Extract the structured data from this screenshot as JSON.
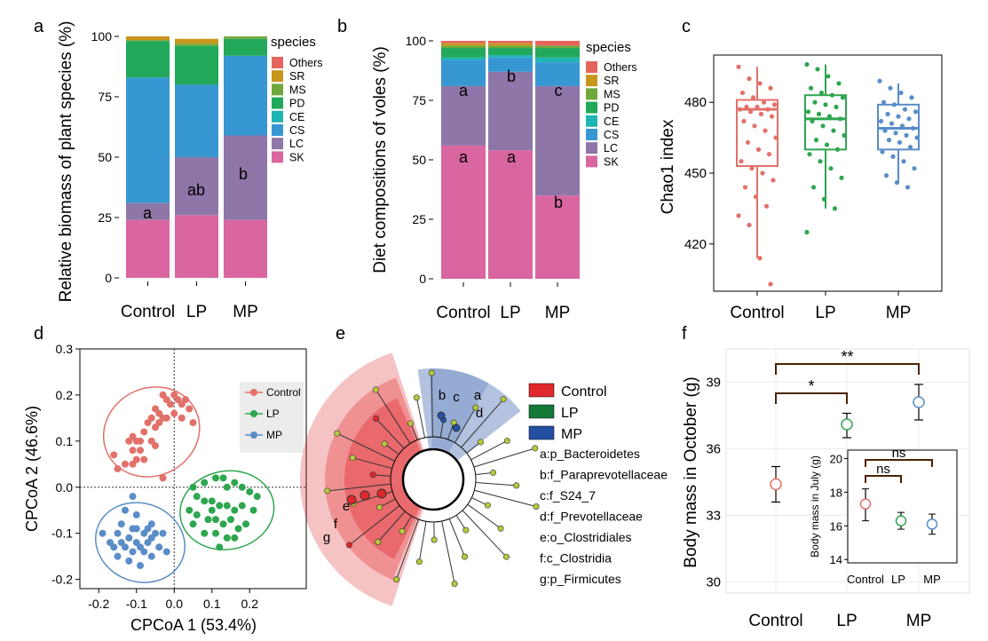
{
  "colors": {
    "SK": "#d966a0",
    "LC": "#8e76a8",
    "CS": "#3797d2",
    "CE": "#1fb5b5",
    "PD": "#21a85b",
    "MS": "#6fa83a",
    "SR": "#c9961c",
    "Others": "#e5645c",
    "control": "#e2716a",
    "lp": "#2ea64f",
    "mp": "#5a8dc8",
    "clado_red": "#e0282c",
    "clado_green": "#137a3a",
    "clado_blue": "#2450a4"
  },
  "chart_data": [
    {
      "panel": "a",
      "type": "bar",
      "stacked": true,
      "ylabel": "Relative biomass of plant species (%)",
      "xlabel": "",
      "categories": [
        "Control",
        "LP",
        "MP"
      ],
      "ylim": [
        0,
        100
      ],
      "yticks": [
        0,
        25,
        50,
        75,
        100
      ],
      "legend_title": "species",
      "legend": [
        "Others",
        "SR",
        "MS",
        "PD",
        "CE",
        "CS",
        "LC",
        "SK"
      ],
      "series": [
        {
          "name": "SK",
          "values": [
            24,
            26,
            24
          ]
        },
        {
          "name": "LC",
          "values": [
            7,
            24,
            35
          ]
        },
        {
          "name": "CS",
          "values": [
            52,
            30,
            33
          ]
        },
        {
          "name": "CE",
          "values": [
            0,
            0,
            0
          ]
        },
        {
          "name": "PD",
          "values": [
            15,
            16,
            7
          ]
        },
        {
          "name": "MS",
          "values": [
            0.5,
            1,
            1
          ]
        },
        {
          "name": "SR",
          "values": [
            1.5,
            2,
            0
          ]
        },
        {
          "name": "Others",
          "values": [
            0,
            0,
            0
          ]
        }
      ],
      "annotations": [
        "a",
        "ab",
        "b"
      ]
    },
    {
      "panel": "b",
      "type": "bar",
      "stacked": true,
      "ylabel": "Diet compositions of voles (%)",
      "xlabel": "",
      "categories": [
        "Control",
        "LP",
        "MP"
      ],
      "ylim": [
        0,
        100
      ],
      "yticks": [
        0,
        25,
        50,
        75,
        100
      ],
      "legend_title": "species",
      "legend": [
        "Others",
        "SR",
        "MS",
        "PD",
        "CE",
        "CS",
        "LC",
        "SK"
      ],
      "series": [
        {
          "name": "SK",
          "values": [
            56,
            54,
            35
          ]
        },
        {
          "name": "LC",
          "values": [
            25,
            33,
            46
          ]
        },
        {
          "name": "CS",
          "values": [
            11,
            6,
            10
          ]
        },
        {
          "name": "CE",
          "values": [
            1,
            1,
            2
          ]
        },
        {
          "name": "PD",
          "values": [
            4,
            3,
            4
          ]
        },
        {
          "name": "MS",
          "values": [
            1,
            1,
            1
          ]
        },
        {
          "name": "SR",
          "values": [
            1,
            1,
            0
          ]
        },
        {
          "name": "Others",
          "values": [
            1,
            1,
            2
          ]
        }
      ],
      "annotations_top": [
        "a",
        "b",
        "c"
      ],
      "annotations_bottom": [
        "a",
        "a",
        "b"
      ]
    },
    {
      "panel": "c",
      "type": "box",
      "ylabel": "Chao1 index",
      "categories": [
        "Control",
        "LP",
        "MP"
      ],
      "ylim": [
        400,
        500
      ],
      "yticks": [
        420,
        450,
        480
      ],
      "boxes": [
        {
          "name": "Control",
          "whisker_low": 414,
          "q1": 453,
          "median": 477,
          "q3": 481,
          "whisker_high": 495
        },
        {
          "name": "LP",
          "whisker_low": 435,
          "q1": 460,
          "median": 473,
          "q3": 483,
          "whisker_high": 496
        },
        {
          "name": "MP",
          "whisker_low": 446,
          "q1": 460,
          "median": 469,
          "q3": 479,
          "whisker_high": 488
        }
      ],
      "points": {
        "Control": [
          495,
          490,
          488,
          486,
          484,
          482,
          480,
          479,
          478,
          478,
          477,
          477,
          476,
          475,
          474,
          472,
          470,
          468,
          465,
          463,
          460,
          458,
          455,
          452,
          450,
          447,
          444,
          440,
          436,
          432,
          428,
          414,
          403
        ],
        "LP": [
          496,
          494,
          491,
          488,
          486,
          484,
          483,
          482,
          480,
          479,
          478,
          476,
          475,
          474,
          473,
          472,
          470,
          468,
          466,
          464,
          462,
          460,
          458,
          455,
          452,
          448,
          444,
          439,
          435,
          425
        ],
        "MP": [
          489,
          486,
          484,
          482,
          480,
          479,
          477,
          476,
          475,
          474,
          473,
          472,
          471,
          470,
          469,
          468,
          467,
          466,
          465,
          464,
          463,
          461,
          459,
          457,
          455,
          452,
          449,
          446,
          444
        ]
      }
    },
    {
      "panel": "d",
      "type": "scatter",
      "xlabel": "CPCoA 1 (53.4%)",
      "ylabel": "CPCoA 2 (46.6%)",
      "xlim": [
        -0.25,
        0.35
      ],
      "ylim": [
        -0.22,
        0.3
      ],
      "xticks": [
        -0.2,
        -0.1,
        0.0,
        0.1,
        0.2
      ],
      "yticks": [
        -0.2,
        -0.1,
        0.0,
        0.1,
        0.2,
        0.3
      ],
      "legend": [
        "Control",
        "LP",
        "MP"
      ],
      "series": [
        {
          "name": "Control",
          "ellipse": {
            "cx": -0.06,
            "cy": 0.12,
            "rx": 0.13,
            "ry": 0.095,
            "angle_deg": 27
          },
          "points": [
            [
              -0.03,
              0.2
            ],
            [
              0.0,
              0.2
            ],
            [
              -0.02,
              0.19
            ],
            [
              -0.01,
              0.18
            ],
            [
              0.01,
              0.19
            ],
            [
              0.02,
              0.18
            ],
            [
              0.03,
              0.19
            ],
            [
              0.04,
              0.17
            ],
            [
              -0.05,
              0.17
            ],
            [
              -0.04,
              0.16
            ],
            [
              -0.03,
              0.15
            ],
            [
              -0.02,
              0.15
            ],
            [
              0.0,
              0.16
            ],
            [
              0.02,
              0.15
            ],
            [
              0.05,
              0.14
            ],
            [
              -0.06,
              0.15
            ],
            [
              -0.07,
              0.14
            ],
            [
              -0.05,
              0.13
            ],
            [
              -0.04,
              0.14
            ],
            [
              -0.08,
              0.12
            ],
            [
              -0.09,
              0.1
            ],
            [
              -0.1,
              0.1
            ],
            [
              -0.11,
              0.08
            ],
            [
              -0.12,
              0.1
            ],
            [
              -0.1,
              0.06
            ],
            [
              -0.11,
              0.05
            ],
            [
              -0.08,
              0.06
            ],
            [
              -0.16,
              0.07
            ],
            [
              -0.15,
              0.04
            ],
            [
              -0.13,
              0.05
            ],
            [
              -0.03,
              0.02
            ],
            [
              -0.05,
              0.09
            ],
            [
              -0.06,
              0.1
            ],
            [
              -0.11,
              0.11
            ],
            [
              -0.09,
              0.08
            ]
          ]
        },
        {
          "name": "LP",
          "ellipse": {
            "cx": 0.14,
            "cy": -0.05,
            "rx": 0.125,
            "ry": 0.085,
            "angle_deg": 10
          },
          "points": [
            [
              0.05,
              0.0
            ],
            [
              0.08,
              0.01
            ],
            [
              0.11,
              0.02
            ],
            [
              0.13,
              0.02
            ],
            [
              0.14,
              0.0
            ],
            [
              0.16,
              0.01
            ],
            [
              0.18,
              0.0
            ],
            [
              0.2,
              -0.01
            ],
            [
              0.06,
              -0.02
            ],
            [
              0.08,
              -0.03
            ],
            [
              0.1,
              -0.03
            ],
            [
              0.12,
              -0.04
            ],
            [
              0.14,
              -0.04
            ],
            [
              0.16,
              -0.05
            ],
            [
              0.18,
              -0.04
            ],
            [
              0.21,
              -0.05
            ],
            [
              0.04,
              -0.05
            ],
            [
              0.06,
              -0.06
            ],
            [
              0.09,
              -0.07
            ],
            [
              0.11,
              -0.07
            ],
            [
              0.13,
              -0.08
            ],
            [
              0.15,
              -0.07
            ],
            [
              0.17,
              -0.09
            ],
            [
              0.19,
              -0.08
            ],
            [
              0.08,
              -0.1
            ],
            [
              0.11,
              -0.1
            ],
            [
              0.14,
              -0.11
            ],
            [
              0.16,
              -0.11
            ],
            [
              0.12,
              -0.13
            ],
            [
              0.05,
              -0.08
            ],
            [
              0.22,
              -0.02
            ],
            [
              0.1,
              -0.05
            ]
          ]
        },
        {
          "name": "MP",
          "ellipse": {
            "cx": -0.09,
            "cy": -0.12,
            "rx": 0.12,
            "ry": 0.085,
            "angle_deg": -20
          },
          "points": [
            [
              -0.13,
              -0.05
            ],
            [
              -0.1,
              -0.06
            ],
            [
              -0.06,
              -0.08
            ],
            [
              -0.14,
              -0.08
            ],
            [
              -0.11,
              -0.09
            ],
            [
              -0.08,
              -0.1
            ],
            [
              -0.05,
              -0.1
            ],
            [
              -0.15,
              -0.1
            ],
            [
              -0.12,
              -0.11
            ],
            [
              -0.1,
              -0.12
            ],
            [
              -0.07,
              -0.12
            ],
            [
              -0.04,
              -0.13
            ],
            [
              -0.17,
              -0.12
            ],
            [
              -0.13,
              -0.13
            ],
            [
              -0.11,
              -0.14
            ],
            [
              -0.08,
              -0.14
            ],
            [
              -0.06,
              -0.15
            ],
            [
              -0.15,
              -0.15
            ],
            [
              -0.12,
              -0.16
            ],
            [
              -0.09,
              -0.17
            ],
            [
              -0.1,
              -0.09
            ],
            [
              -0.03,
              -0.1
            ],
            [
              -0.19,
              -0.1
            ],
            [
              -0.14,
              -0.12
            ],
            [
              -0.07,
              -0.09
            ],
            [
              -0.06,
              -0.11
            ],
            [
              -0.02,
              -0.14
            ],
            [
              -0.16,
              -0.13
            ],
            [
              -0.09,
              -0.13
            ],
            [
              -0.11,
              -0.02
            ]
          ]
        }
      ]
    },
    {
      "panel": "e",
      "type": "cladogram",
      "legend": [
        "Control",
        "LP",
        "MP"
      ],
      "node_labels": [
        "a",
        "b",
        "c",
        "d",
        "e",
        "f",
        "g"
      ],
      "taxa": [
        "a:p_Bacteroidetes",
        "b:f_Paraprevotellaceae",
        "c:f_S24_7",
        "d:f_Prevotellaceae",
        "e:o_Clostridiales",
        "f:c_Clostridia",
        "g:p_Firmicutes"
      ]
    },
    {
      "panel": "f",
      "type": "errorbar",
      "ylabel": "Body mass in October (g)",
      "categories": [
        "Control",
        "LP",
        "MP"
      ],
      "ylim": [
        29.5,
        40.5
      ],
      "yticks": [
        30,
        33,
        36,
        39
      ],
      "series": [
        {
          "name": "Control",
          "mean": 34.4,
          "low": 33.6,
          "high": 35.2
        },
        {
          "name": "LP",
          "mean": 37.1,
          "low": 36.5,
          "high": 37.6
        },
        {
          "name": "MP",
          "mean": 38.1,
          "low": 37.3,
          "high": 38.9
        }
      ],
      "significance": [
        {
          "from": "Control",
          "to": "LP",
          "label": "*"
        },
        {
          "from": "Control",
          "to": "MP",
          "label": "**"
        }
      ],
      "inset": {
        "ylabel": "Body mass in July (g)",
        "categories": [
          "Control",
          "LP",
          "MP"
        ],
        "ylim": [
          13.8,
          20.5
        ],
        "yticks": [
          14,
          16,
          18,
          20
        ],
        "series": [
          {
            "name": "Control",
            "mean": 17.3,
            "low": 16.3,
            "high": 18.2
          },
          {
            "name": "LP",
            "mean": 16.3,
            "low": 15.8,
            "high": 16.8
          },
          {
            "name": "MP",
            "mean": 16.1,
            "low": 15.5,
            "high": 16.7
          }
        ],
        "significance": [
          {
            "from": "Control",
            "to": "LP",
            "label": "ns"
          },
          {
            "from": "Control",
            "to": "MP",
            "label": "ns"
          }
        ]
      }
    }
  ],
  "panel_labels": [
    "a",
    "b",
    "c",
    "d",
    "e",
    "f"
  ]
}
